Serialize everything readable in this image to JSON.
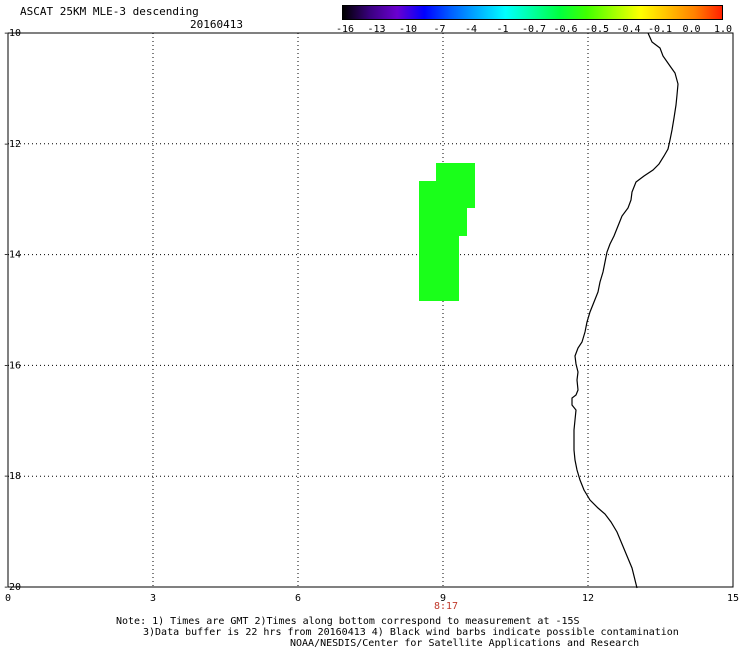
{
  "header": {
    "title": "ASCAT 25KM MLE-3 descending",
    "date": "20160413"
  },
  "colorbar": {
    "colors": [
      "#000000",
      "#3a0080",
      "#6a00d0",
      "#0000ff",
      "#0060ff",
      "#00b0ff",
      "#00ffff",
      "#00ffa0",
      "#00ff40",
      "#40ff00",
      "#a0ff00",
      "#ffff00",
      "#ffc000",
      "#ff8000",
      "#ff2000"
    ],
    "labels": [
      "-16",
      "-13",
      "-10",
      "-7",
      "-4",
      "-1",
      "-0.7",
      "-0.6",
      "-0.5",
      "-0.4",
      "-0.1",
      "0.0",
      "1.0"
    ]
  },
  "map": {
    "x_ticks": [
      "0",
      "3",
      "6",
      "9",
      "12",
      "15"
    ],
    "y_ticks": [
      "-10",
      "-12",
      "-14",
      "-16",
      "-18",
      "-20"
    ],
    "lon_range": [
      0,
      15
    ],
    "lat_range": [
      -20,
      -10
    ],
    "grid": "dotted",
    "swath_color": "#1aff1a",
    "coastline_color": "#000000",
    "time_label": "8:17",
    "time_label_color": "#c0392b"
  },
  "notes": {
    "line1": "Note: 1) Times are GMT 2)Times along bottom correspond to measurement at -15S",
    "line2": "3)Data buffer is 22 hrs from 20160413 4) Black wind barbs indicate possible contamination",
    "line3": "NOAA/NESDIS/Center for Satellite Applications and Research"
  }
}
